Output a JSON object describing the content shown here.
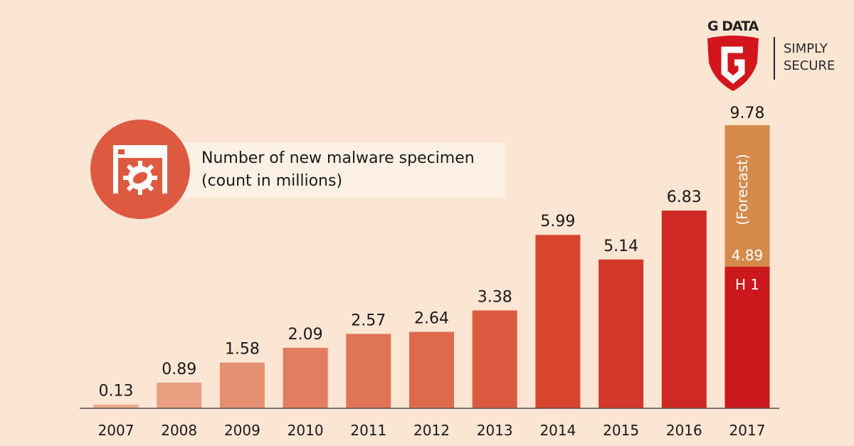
{
  "header": {
    "title": "Number of new malware specimen",
    "subtitle": "(count in millions)"
  },
  "logo": {
    "brand": "G DATA",
    "tagline_line1": "SIMPLY",
    "tagline_line2": "SECURE",
    "color": "#d2161c"
  },
  "background": "#fbe5d3",
  "chart_data": {
    "type": "bar",
    "title": "Number of new malware specimen",
    "subtitle": "(count in millions)",
    "xlabel": "",
    "ylabel": "",
    "ylim": [
      0,
      10
    ],
    "grid": false,
    "categories": [
      "2007",
      "2008",
      "2009",
      "2010",
      "2011",
      "2012",
      "2013",
      "2014",
      "2015",
      "2016",
      "2017"
    ],
    "values": [
      0.13,
      0.89,
      1.58,
      2.09,
      2.57,
      2.64,
      3.38,
      5.99,
      5.14,
      6.83,
      4.89
    ],
    "labels": [
      "0.13",
      "0.89",
      "1.58",
      "2.09",
      "2.57",
      "2.64",
      "3.38",
      "5.99",
      "5.14",
      "6.83",
      "4.89"
    ],
    "colors": [
      "#e9ab8d",
      "#e8a080",
      "#e58f71",
      "#e27d5f",
      "#e07556",
      "#de6a4e",
      "#dc5a40",
      "#d8452f",
      "#d3392b",
      "#ce2922",
      "#cc181c"
    ],
    "forecast": {
      "category": "2017",
      "total": 9.78,
      "total_label": "9.78",
      "label": "(Forecast)",
      "color": "#d58a4b"
    },
    "inner_label": {
      "category": "2017",
      "text": "H 1"
    }
  }
}
